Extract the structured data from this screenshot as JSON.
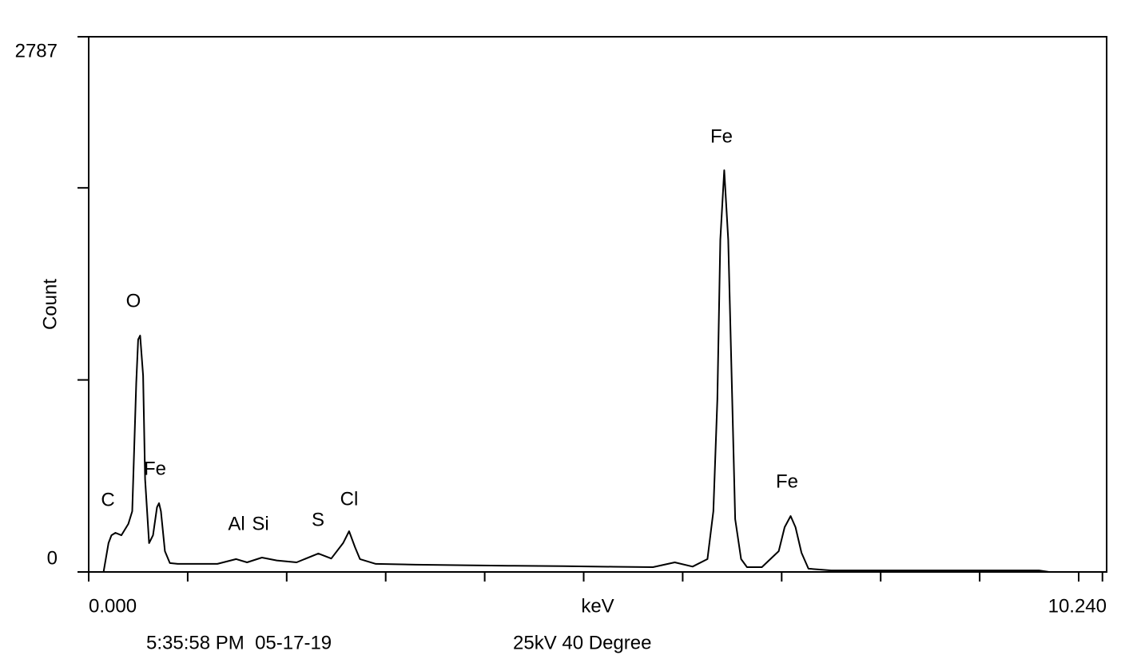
{
  "chart_data": {
    "type": "line",
    "ylabel": "Count",
    "xlabel": "keV",
    "notes": [
      "5:35:58 PM  05-17-19",
      "25kV 40 Degree"
    ],
    "annotations": [
      "C",
      "O",
      "Fe",
      "Al",
      "Si",
      "S",
      "Cl",
      "Fe",
      "Fe"
    ],
    "color": "#000000",
    "xlim": [
      0,
      10.24
    ],
    "ylim": [
      0,
      2787
    ],
    "xticks": [
      {
        "value": 0,
        "label": "0.000"
      },
      {
        "value": 10.24,
        "label": "10.240"
      }
    ],
    "minor_xticks": [
      1,
      2,
      3,
      4,
      5,
      6,
      7,
      8,
      9,
      10
    ],
    "yticks": [
      0,
      2787
    ],
    "minor_yticks": [
      1000,
      2000
    ],
    "x": [
      0.15,
      0.2,
      0.23,
      0.27,
      0.33,
      0.4,
      0.44,
      0.48,
      0.5,
      0.52,
      0.55,
      0.57,
      0.61,
      0.65,
      0.69,
      0.71,
      0.73,
      0.77,
      0.82,
      0.9,
      1.1,
      1.3,
      1.49,
      1.6,
      1.75,
      1.9,
      2.1,
      2.32,
      2.45,
      2.57,
      2.63,
      2.69,
      2.74,
      2.9,
      3.3,
      3.8,
      4.3,
      4.8,
      5.3,
      5.7,
      5.92,
      6.1,
      6.25,
      6.31,
      6.35,
      6.38,
      6.42,
      6.46,
      6.5,
      6.53,
      6.59,
      6.65,
      6.8,
      6.97,
      7.03,
      7.09,
      7.14,
      7.2,
      7.27,
      7.5,
      8.0,
      8.5,
      9.0,
      9.6,
      9.7,
      10.24
    ],
    "values": [
      0,
      150,
      191,
      204,
      191,
      250,
      316,
      982,
      1210,
      1231,
      1023,
      483,
      150,
      191,
      337,
      358,
      316,
      108,
      46,
      42,
      42,
      42,
      67,
      50,
      75,
      60,
      50,
      96,
      70,
      150,
      212,
      129,
      67,
      42,
      38,
      35,
      32,
      30,
      27,
      25,
      50,
      28,
      67,
      316,
      898,
      1730,
      2092,
      1730,
      898,
      275,
      67,
      25,
      25,
      108,
      233,
      291,
      233,
      100,
      17,
      8,
      8,
      8,
      8,
      8,
      0,
      0
    ]
  }
}
